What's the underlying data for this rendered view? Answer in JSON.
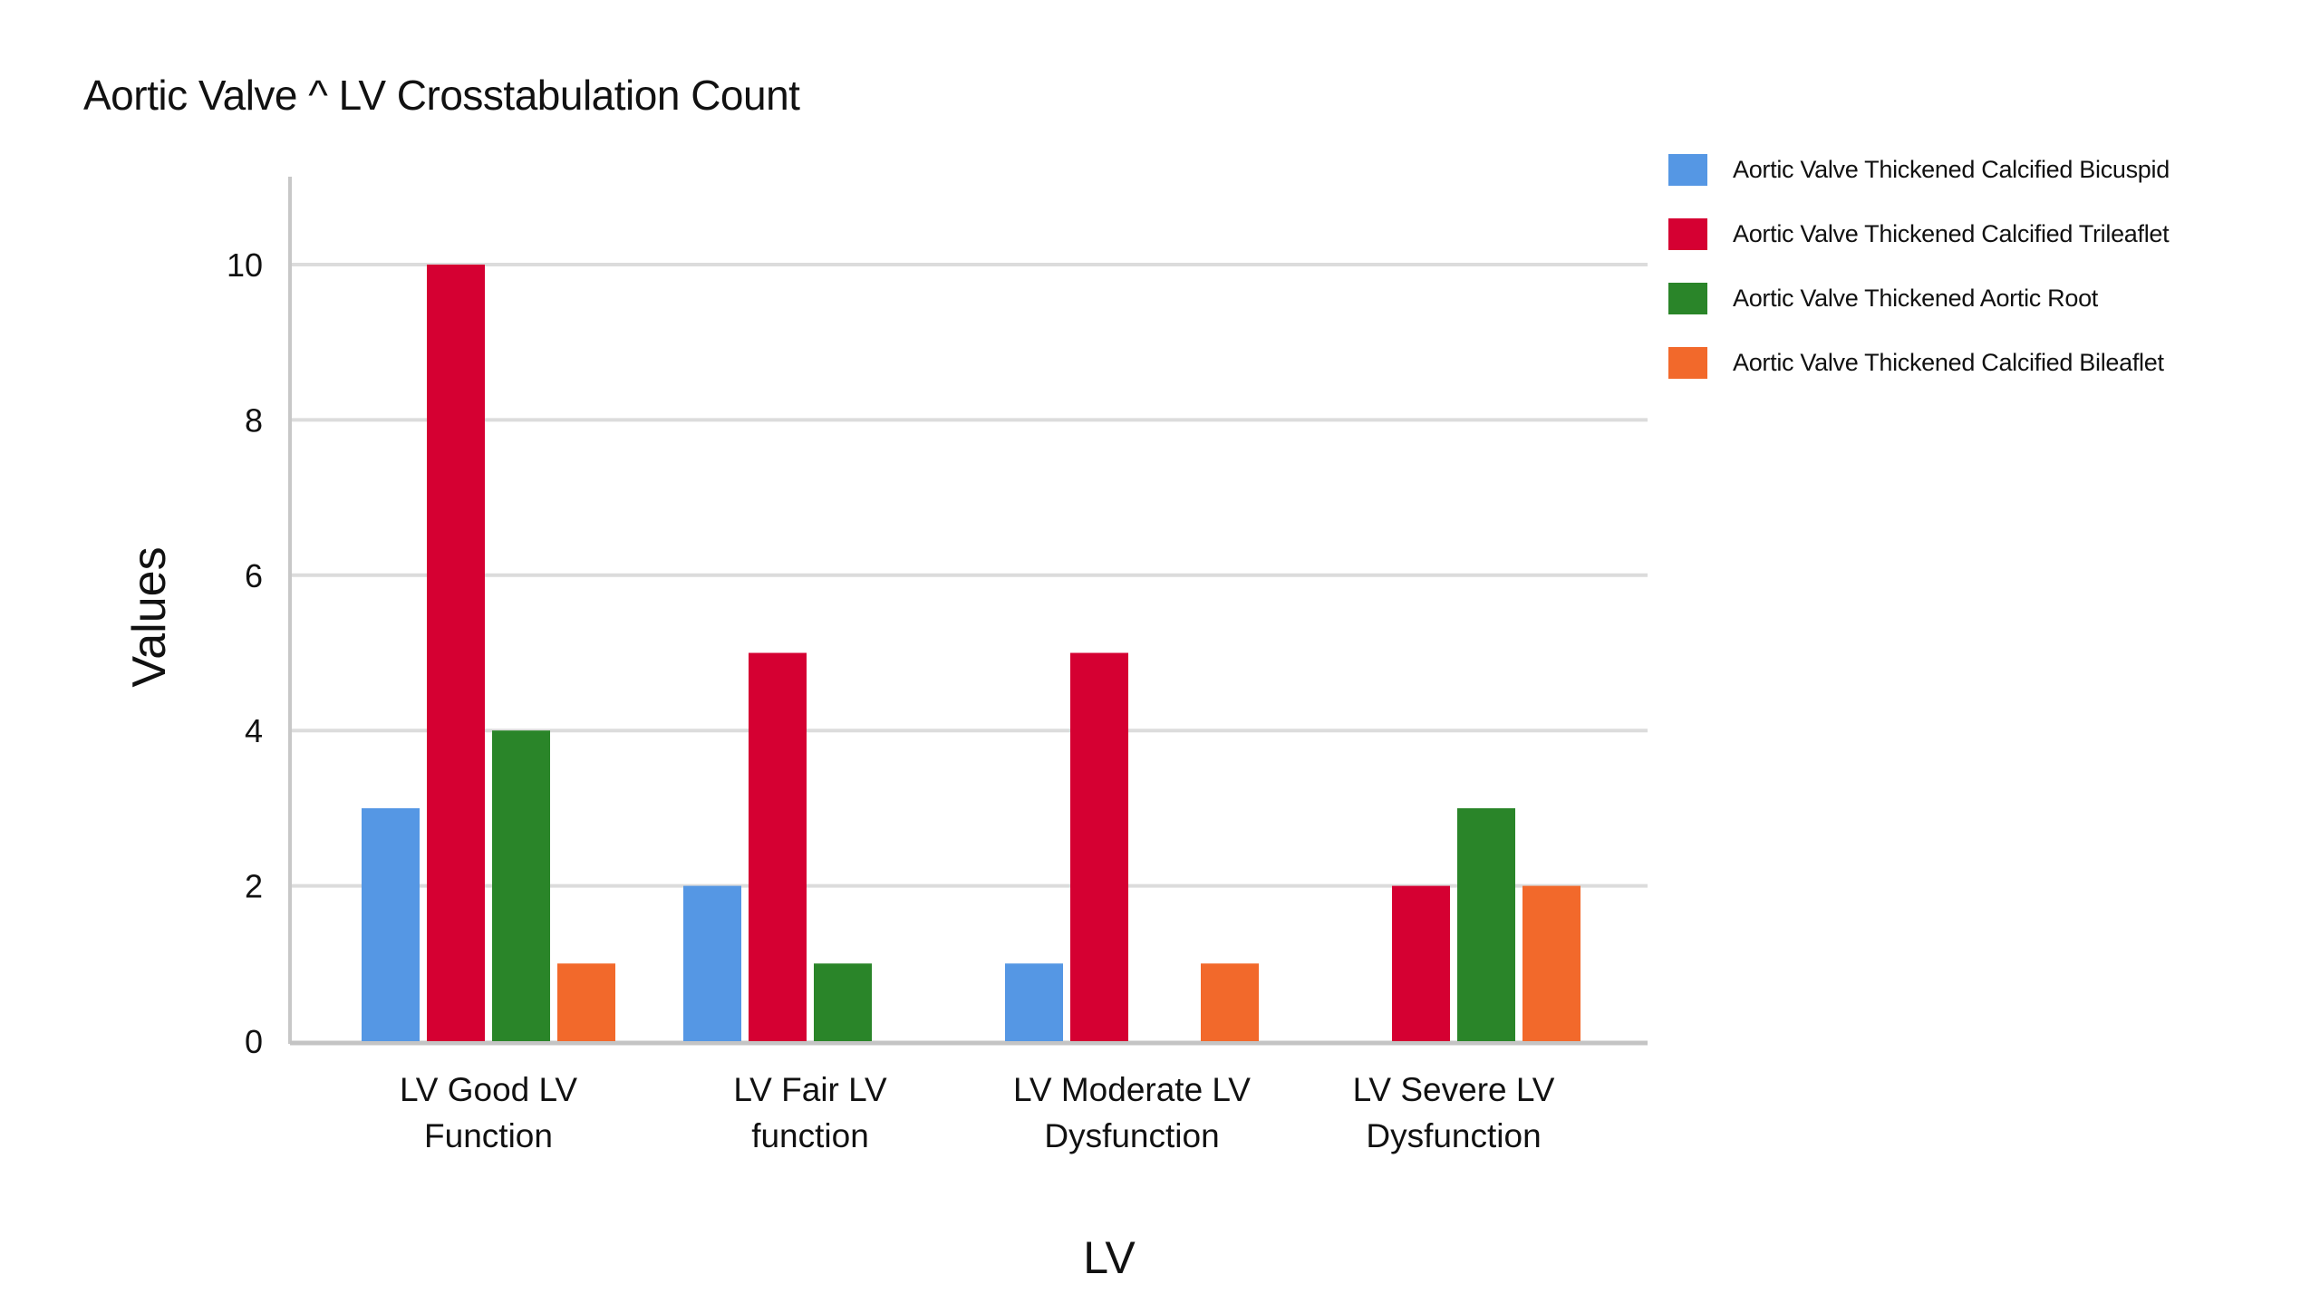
{
  "chart_data": {
    "type": "bar",
    "title": "Aortic Valve ^ LV Crosstabulation Count",
    "xlabel": "LV",
    "ylabel": "Values",
    "ylim": [
      0,
      10
    ],
    "yticks": [
      "0",
      "2",
      "4",
      "6",
      "8",
      "10"
    ],
    "grid": true,
    "legend_position": "right",
    "categories": [
      [
        "LV Good LV",
        "Function"
      ],
      [
        "LV Fair LV",
        "function"
      ],
      [
        "LV Moderate LV",
        "Dysfunction"
      ],
      [
        "LV Severe LV",
        "Dysfunction"
      ]
    ],
    "series": [
      {
        "name": "Aortic Valve Thickened Calcified Bicuspid",
        "color": "#5597e4",
        "values": [
          3,
          2,
          1,
          0
        ]
      },
      {
        "name": "Aortic Valve Thickened Calcified Trileaflet",
        "color": "#d50032",
        "values": [
          10,
          5,
          5,
          2
        ]
      },
      {
        "name": "Aortic Valve Thickened Aortic Root",
        "color": "#2a8529",
        "values": [
          4,
          1,
          0,
          3
        ]
      },
      {
        "name": "Aortic Valve Thickened Calcified Bileaflet",
        "color": "#f2692b",
        "values": [
          1,
          0,
          1,
          2
        ]
      }
    ]
  }
}
